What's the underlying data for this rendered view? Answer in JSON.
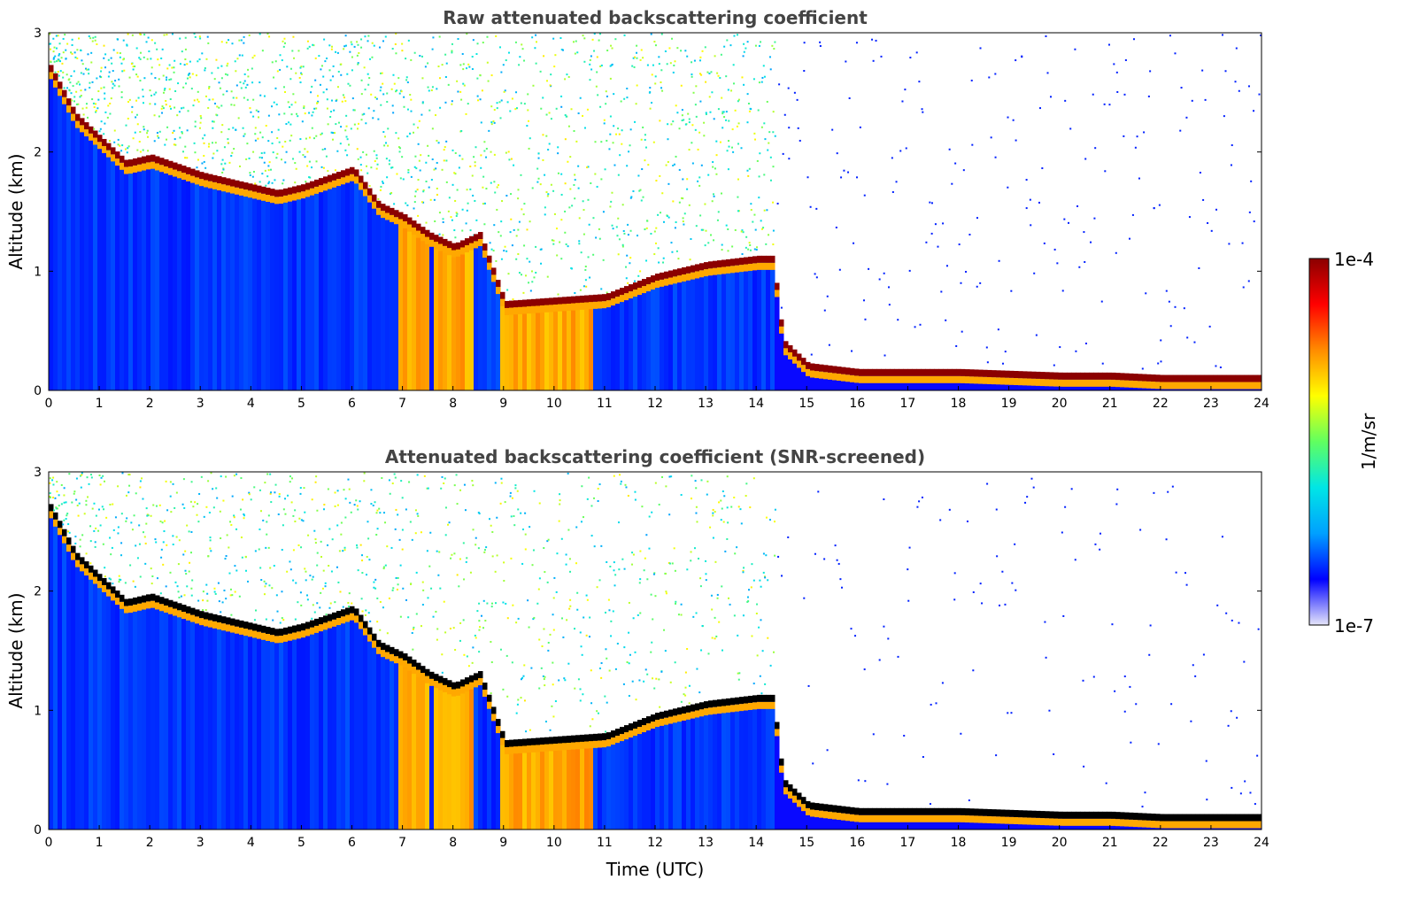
{
  "colors": {
    "background": "#ffffff",
    "title": "#444444",
    "layer_core": "#8b0000",
    "layer_core_screened": "#000000",
    "boundary_layer": "#0a2bff",
    "colormap": [
      "#e6e6fa",
      "#0000ff",
      "#00a0ff",
      "#00e6e6",
      "#60ff60",
      "#ffff00",
      "#ff8c00",
      "#ff0000",
      "#8b0000"
    ]
  },
  "colorbar": {
    "label": "1/m/sr",
    "top_label": "1e-4",
    "bottom_label": "1e-7",
    "min": 1e-07,
    "max": 0.0001,
    "scale": "log"
  },
  "axes": {
    "xlabel": "Time (UTC)",
    "ylabel": "Altitude (km)",
    "xlim": [
      0,
      24
    ],
    "ylim": [
      0,
      3
    ],
    "xticks": [
      "0",
      "1",
      "2",
      "3",
      "4",
      "5",
      "6",
      "7",
      "8",
      "9",
      "10",
      "11",
      "12",
      "13",
      "14",
      "15",
      "16",
      "17",
      "18",
      "19",
      "20",
      "21",
      "22",
      "23",
      "24"
    ],
    "yticks": [
      "0",
      "1",
      "2",
      "3"
    ]
  },
  "chart_data": [
    {
      "type": "heatmap",
      "title": "Raw attenuated backscattering coefficient",
      "xlabel": "",
      "ylabel": "Altitude (km)",
      "xlim": [
        0,
        24
      ],
      "ylim": [
        0,
        3
      ],
      "colorbar_range": [
        1e-07,
        0.0001
      ],
      "cloud_layer_top_km": {
        "time_utc": [
          0,
          0.5,
          1,
          1.5,
          2,
          3,
          4,
          4.5,
          5,
          6,
          6.5,
          7,
          7.5,
          8,
          8.5,
          9,
          10,
          11,
          12,
          13,
          14,
          14.3,
          14.5,
          15,
          16,
          18,
          20,
          21,
          22,
          23,
          24
        ],
        "altitude_km": [
          2.7,
          2.3,
          2.1,
          1.9,
          1.95,
          1.8,
          1.7,
          1.65,
          1.7,
          1.85,
          1.55,
          1.45,
          1.3,
          1.2,
          1.3,
          0.72,
          0.75,
          0.78,
          0.95,
          1.05,
          1.1,
          1.1,
          0.4,
          0.2,
          0.15,
          0.15,
          0.12,
          0.12,
          0.1,
          0.1,
          0.1
        ]
      }
    },
    {
      "type": "heatmap",
      "title": "Attenuated backscattering coefficient (SNR-screened)",
      "xlabel": "Time (UTC)",
      "ylabel": "Altitude (km)",
      "xlim": [
        0,
        24
      ],
      "ylim": [
        0,
        3
      ],
      "colorbar_range": [
        1e-07,
        0.0001
      ],
      "cloud_layer_top_km": {
        "time_utc": [
          0,
          0.5,
          1,
          1.5,
          2,
          3,
          4,
          4.5,
          5,
          6,
          6.5,
          7,
          7.5,
          8,
          8.5,
          9,
          10,
          11,
          12,
          13,
          14,
          14.3,
          14.5,
          15,
          16,
          18,
          20,
          21,
          22,
          23,
          24
        ],
        "altitude_km": [
          2.7,
          2.3,
          2.1,
          1.9,
          1.95,
          1.8,
          1.7,
          1.65,
          1.7,
          1.85,
          1.55,
          1.45,
          1.3,
          1.2,
          1.3,
          0.72,
          0.75,
          0.78,
          0.95,
          1.05,
          1.1,
          1.1,
          0.4,
          0.2,
          0.15,
          0.15,
          0.12,
          0.12,
          0.1,
          0.1,
          0.1
        ]
      }
    }
  ]
}
